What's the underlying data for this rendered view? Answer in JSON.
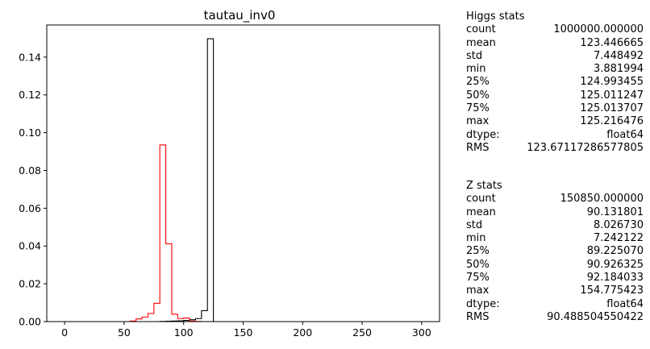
{
  "chart_data": {
    "type": "histogram",
    "title": "tautau_inv0",
    "xlim": [
      -15,
      315
    ],
    "ylim": [
      0,
      0.157
    ],
    "xticks": [
      0,
      50,
      100,
      150,
      200,
      250,
      300
    ],
    "yticks": [
      0.0,
      0.02,
      0.04,
      0.06,
      0.08,
      0.1,
      0.12,
      0.14
    ],
    "grid": false,
    "bin_edges": [
      0,
      5,
      10,
      15,
      20,
      25,
      30,
      35,
      40,
      45,
      50,
      55,
      60,
      65,
      70,
      75,
      80,
      85,
      90,
      95,
      100,
      105,
      110,
      115,
      120,
      125,
      130,
      135,
      140,
      145,
      150,
      155,
      160,
      165,
      170,
      175,
      180,
      185,
      190,
      195,
      200,
      205,
      210,
      215,
      220,
      225,
      230,
      235,
      240,
      245,
      250,
      255,
      260,
      265,
      270,
      275,
      280,
      285,
      290,
      295,
      300
    ],
    "series": [
      {
        "name": "Higgs",
        "color": "#000000",
        "values": [
          0,
          0,
          0,
          0,
          0,
          0,
          0,
          0,
          0,
          0,
          0,
          0,
          0,
          0,
          0,
          0,
          0.0001,
          0.0002,
          0.0003,
          0.0004,
          0.0006,
          0.001,
          0.0016,
          0.0058,
          0.1497,
          0,
          0,
          0,
          0,
          0,
          0,
          0,
          0,
          0,
          0,
          0,
          0,
          0,
          0,
          0,
          0,
          0,
          0,
          0,
          0,
          0,
          0,
          0,
          0,
          0,
          0,
          0,
          0,
          0,
          0,
          0,
          0,
          0,
          0,
          0
        ]
      },
      {
        "name": "Z",
        "color": "#ff0000",
        "values": [
          0,
          0,
          0,
          0,
          0,
          0,
          0,
          0,
          0,
          0,
          0,
          0.0003,
          0.0014,
          0.0024,
          0.0043,
          0.0097,
          0.0935,
          0.0412,
          0.0039,
          0.0016,
          0.0019,
          0.0003,
          0.0001,
          0,
          0,
          0,
          0,
          0,
          0,
          0,
          0,
          0,
          0,
          0,
          0,
          0,
          0,
          0,
          0,
          0,
          0,
          0,
          0,
          0,
          0,
          0,
          0,
          0,
          0,
          0,
          0,
          0,
          0,
          0,
          0,
          0,
          0,
          0,
          0,
          0
        ]
      }
    ]
  },
  "higgs_stats": {
    "title": "Higgs stats",
    "rows": [
      {
        "key": "count",
        "value": "1000000.000000"
      },
      {
        "key": "mean",
        "value": "123.446665"
      },
      {
        "key": "std",
        "value": "7.448492"
      },
      {
        "key": "min",
        "value": "3.881994"
      },
      {
        "key": "25%",
        "value": "124.993455"
      },
      {
        "key": "50%",
        "value": "125.011247"
      },
      {
        "key": "75%",
        "value": "125.013707"
      },
      {
        "key": "max",
        "value": "125.216476"
      },
      {
        "key": "dtype:",
        "value": "float64"
      },
      {
        "key": "RMS",
        "value": "123.67117286577805"
      }
    ]
  },
  "z_stats": {
    "title": "Z stats",
    "rows": [
      {
        "key": "count",
        "value": "150850.000000"
      },
      {
        "key": "mean",
        "value": "90.131801"
      },
      {
        "key": "std",
        "value": "8.026730"
      },
      {
        "key": "min",
        "value": "7.242122"
      },
      {
        "key": "25%",
        "value": "89.225070"
      },
      {
        "key": "50%",
        "value": "90.926325"
      },
      {
        "key": "75%",
        "value": "92.184033"
      },
      {
        "key": "max",
        "value": "154.775423"
      },
      {
        "key": "dtype:",
        "value": "float64"
      },
      {
        "key": "RMS",
        "value": "90.488504550422"
      }
    ]
  }
}
